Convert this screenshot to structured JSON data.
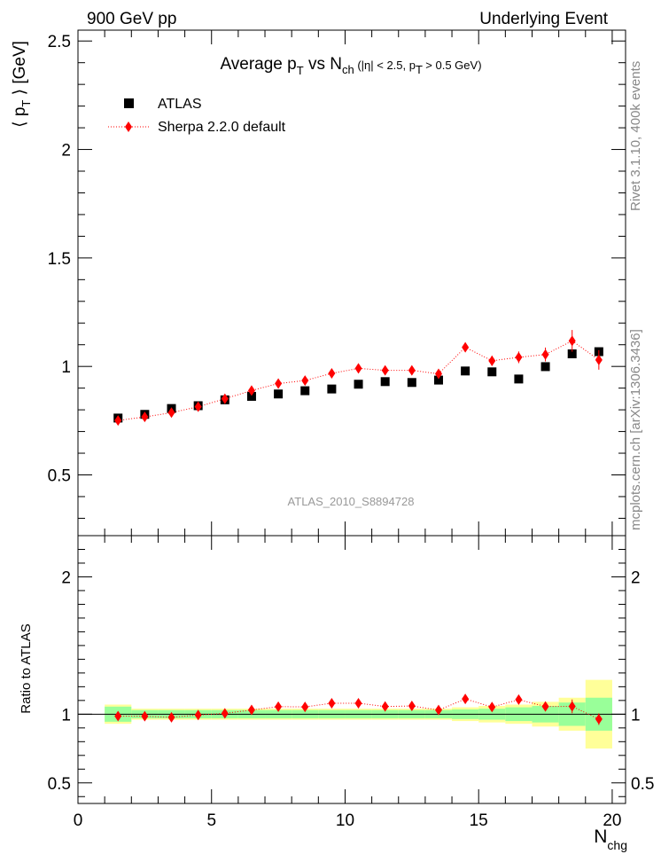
{
  "header": {
    "left": "900 GeV pp",
    "right": "Underlying Event"
  },
  "side_labels": {
    "rivet": "Rivet 3.1.10,  400k events",
    "mcplots": "mcplots.cern.ch [arXiv:1306.3436]"
  },
  "chart_data": [
    {
      "type": "scatter",
      "title": "Average p_T vs N_ch (|η| < 2.5, p_T > 0.5 GeV)",
      "analysis_label": "ATLAS_2010_S8894728",
      "ylabel": "⟨ p_T ⟩ [GeV]",
      "ylim": [
        0.22,
        2.55
      ],
      "xlim": [
        0,
        20.5
      ],
      "yticks": [
        0.5,
        1,
        1.5,
        2,
        2.5
      ],
      "legend_position": "top-left",
      "series": [
        {
          "name": "ATLAS",
          "color": "#000000",
          "marker": "square",
          "x": [
            1.5,
            2.5,
            3.5,
            4.5,
            5.5,
            6.5,
            7.5,
            8.5,
            9.5,
            10.5,
            11.5,
            12.5,
            13.5,
            14.5,
            15.5,
            16.5,
            17.5,
            18.5,
            19.5
          ],
          "y": [
            0.762,
            0.779,
            0.806,
            0.819,
            0.846,
            0.862,
            0.873,
            0.888,
            0.896,
            0.918,
            0.93,
            0.926,
            0.937,
            0.979,
            0.975,
            0.942,
            0.999,
            1.058,
            1.068
          ]
        },
        {
          "name": "Sherpa 2.2.0 default",
          "color": "#ff0000",
          "marker": "diamond",
          "x": [
            1.5,
            2.5,
            3.5,
            4.5,
            5.5,
            6.5,
            7.5,
            8.5,
            9.5,
            10.5,
            11.5,
            12.5,
            13.5,
            14.5,
            15.5,
            16.5,
            17.5,
            18.5,
            19.5
          ],
          "y": [
            0.751,
            0.767,
            0.787,
            0.814,
            0.851,
            0.889,
            0.921,
            0.935,
            0.968,
            0.991,
            0.982,
            0.982,
            0.966,
            1.088,
            1.026,
            1.042,
            1.055,
            1.118,
            1.03
          ],
          "yerr": [
            0.005,
            0.005,
            0.005,
            0.006,
            0.007,
            0.008,
            0.009,
            0.01,
            0.011,
            0.012,
            0.013,
            0.015,
            0.017,
            0.02,
            0.023,
            0.027,
            0.032,
            0.05,
            0.045
          ]
        }
      ]
    },
    {
      "type": "scatter",
      "ylabel": "Ratio to ATLAS",
      "xlabel": "N_chg",
      "ylim": [
        0.35,
        2.3
      ],
      "xlim": [
        0,
        20.5
      ],
      "yticks": [
        0.5,
        1,
        2
      ],
      "xticks": [
        0,
        5,
        10,
        15,
        20
      ],
      "bands": {
        "x_edges": [
          1,
          2,
          3,
          4,
          5,
          6,
          7,
          8,
          9,
          10,
          11,
          12,
          13,
          14,
          15,
          16,
          17,
          18,
          19,
          20
        ],
        "green_halfwidth": [
          0.055,
          0.03,
          0.03,
          0.03,
          0.03,
          0.03,
          0.03,
          0.03,
          0.03,
          0.03,
          0.03,
          0.03,
          0.03,
          0.035,
          0.04,
          0.05,
          0.06,
          0.085,
          0.12
        ],
        "yellow_halfwidth": [
          0.07,
          0.04,
          0.04,
          0.04,
          0.04,
          0.04,
          0.04,
          0.04,
          0.04,
          0.04,
          0.04,
          0.04,
          0.04,
          0.05,
          0.06,
          0.07,
          0.09,
          0.12,
          0.25
        ]
      },
      "series": [
        {
          "name": "Sherpa 2.2.0 default",
          "color": "#ff0000",
          "x": [
            1.5,
            2.5,
            3.5,
            4.5,
            5.5,
            6.5,
            7.5,
            8.5,
            9.5,
            10.5,
            11.5,
            12.5,
            13.5,
            14.5,
            15.5,
            16.5,
            17.5,
            18.5,
            19.5
          ],
          "y": [
            0.986,
            0.985,
            0.977,
            0.994,
            1.006,
            1.031,
            1.055,
            1.053,
            1.08,
            1.08,
            1.056,
            1.06,
            1.03,
            1.111,
            1.052,
            1.106,
            1.056,
            1.057,
            0.964
          ],
          "yerr": [
            0.006,
            0.006,
            0.006,
            0.007,
            0.008,
            0.009,
            0.01,
            0.011,
            0.012,
            0.013,
            0.014,
            0.016,
            0.018,
            0.02,
            0.023,
            0.028,
            0.032,
            0.05,
            0.042
          ]
        }
      ]
    }
  ]
}
